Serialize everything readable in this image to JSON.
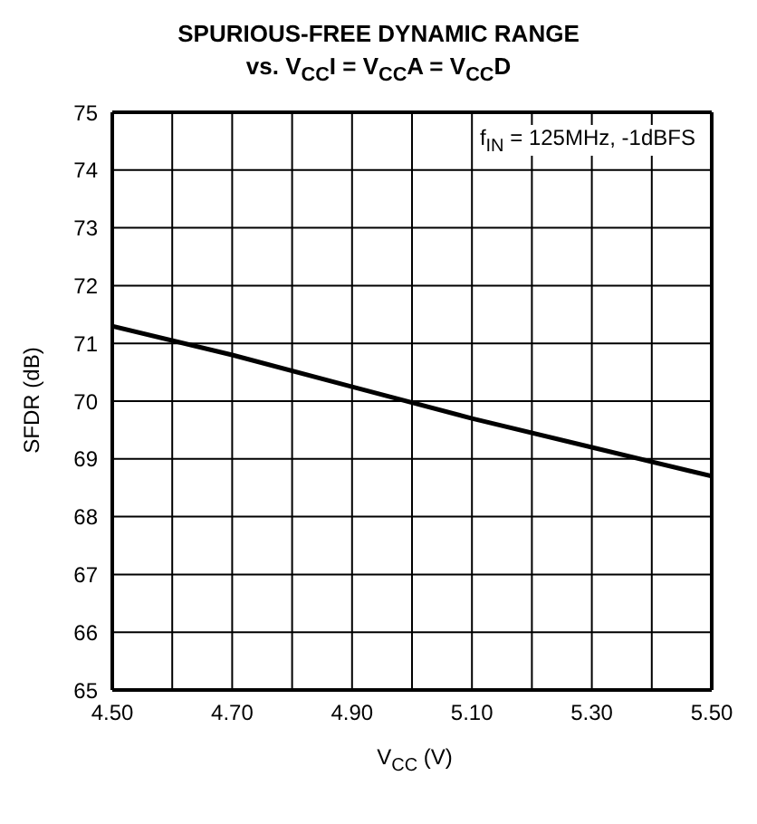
{
  "chart_data": {
    "type": "line",
    "title": "SPURIOUS-FREE DYNAMIC RANGE",
    "subtitle": "vs. V$_{CC}$I = V$_{CC}$A = V$_{CC}$D",
    "xlabel": "V$_{CC}$ (V)",
    "ylabel": "SFDR (dB)",
    "annotations": [
      "f$_{IN}$ = 125MHz, -1dBFS"
    ],
    "x": [
      4.5,
      4.7,
      4.9,
      5.1,
      5.3,
      5.5
    ],
    "series": [
      {
        "color": "#000000",
        "values": [
          71.3,
          70.8,
          70.25,
          69.7,
          69.2,
          68.7
        ]
      }
    ],
    "xlim": [
      4.5,
      5.5
    ],
    "xticks": [
      "4.50",
      {
        "value": 4.6,
        "label": null
      },
      {
        "value": 4.7,
        "label": "4.70"
      },
      {
        "value": 4.8,
        "label": null
      },
      {
        "value": 4.9,
        "label": "4.90"
      },
      {
        "value": 5.0,
        "label": null
      },
      {
        "value": 5.1,
        "label": "5.10"
      },
      {
        "value": 5.2,
        "label": null
      },
      {
        "value": 5.3,
        "label": "5.30"
      },
      {
        "value": 5.4,
        "label": null
      },
      {
        "value": 5.5,
        "label": "5.50"
      }
    ],
    "ylim": [
      65,
      75
    ],
    "yticks": [
      65,
      66,
      67,
      68,
      69,
      70,
      71,
      72,
      73,
      74,
      75
    ],
    "grid": true,
    "marker": "none",
    "line_style": "solid"
  }
}
